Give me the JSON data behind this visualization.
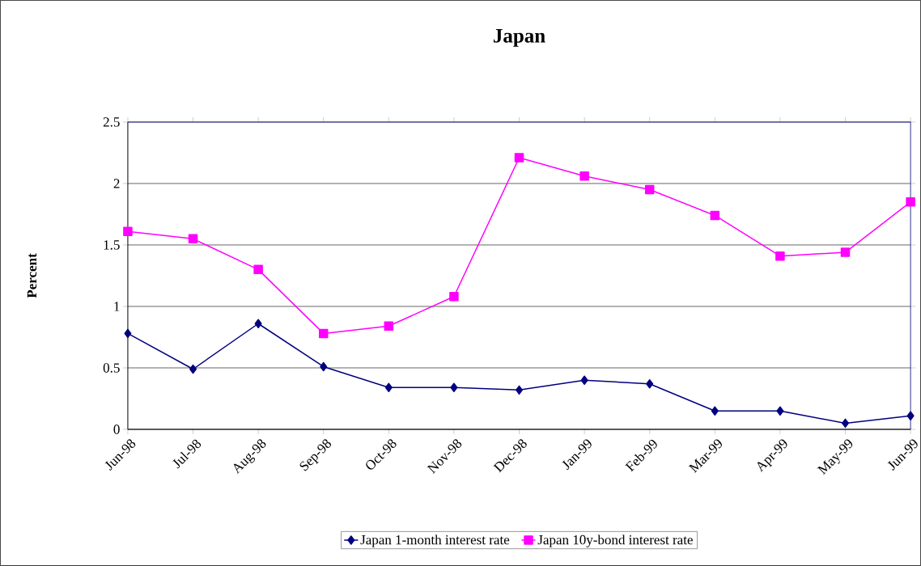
{
  "chart_data": {
    "type": "line",
    "title": "Japan",
    "ylabel": "Percent",
    "categories": [
      "Jun-98",
      "Jul-98",
      "Aug-98",
      "Sep-98",
      "Oct-98",
      "Nov-98",
      "Dec-98",
      "Jan-99",
      "Feb-99",
      "Mar-99",
      "Apr-99",
      "May-99",
      "Jun-99"
    ],
    "series": [
      {
        "name": "Japan 1-month interest rate",
        "color": "#000080",
        "marker": "diamond",
        "values": [
          0.78,
          0.49,
          0.86,
          0.51,
          0.34,
          0.34,
          0.32,
          0.4,
          0.37,
          0.15,
          0.15,
          0.05,
          0.11
        ]
      },
      {
        "name": "Japan 10y-bond interest rate",
        "color": "#ff00ff",
        "marker": "square",
        "values": [
          1.61,
          1.55,
          1.3,
          0.78,
          0.84,
          1.08,
          2.21,
          2.06,
          1.95,
          1.74,
          1.41,
          1.44,
          1.85
        ]
      }
    ],
    "ylim": [
      0,
      2.5
    ],
    "yticks": [
      0,
      0.5,
      1,
      1.5,
      2,
      2.5
    ],
    "grid": "y",
    "legend": "bottom"
  }
}
